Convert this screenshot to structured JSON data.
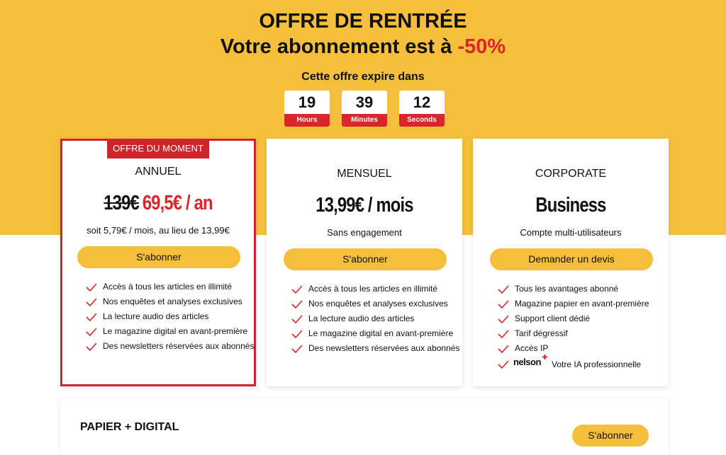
{
  "header": {
    "title": "OFFRE DE RENTRÉE",
    "subtitle": "Votre abonnement est à",
    "discount": "-50%",
    "countdown_label": "Cette offre expire dans",
    "countdown": [
      {
        "value": 19,
        "unit": "Hours"
      },
      {
        "value": 39,
        "unit": "Minutes"
      },
      {
        "value": 12,
        "unit": "Seconds"
      }
    ]
  },
  "plans": [
    {
      "badge": "OFFRE DU MOMENT",
      "name": "ANNUEL",
      "old_price": "139€",
      "price": "69,5€ / an",
      "note": "soit 5,79€ / mois, au lieu de 13,99€",
      "button": "S'abonner",
      "features": [
        "Accès à tous les articles en illimité",
        "Nos enquêtes et analyses exclusives",
        "La lecture audio des articles",
        "Le magazine digital en avant-première",
        "Des newsletters réservées aux abonnés"
      ]
    },
    {
      "name": "MENSUEL",
      "price": "13,99€ / mois",
      "note": "Sans engagement",
      "button": "S'abonner",
      "features": [
        "Accès à tous les articles en illimité",
        "Nos enquêtes et analyses exclusives",
        "La lecture audio des articles",
        "Le magazine digital en avant-première",
        "Des newsletters réservées aux abonnés"
      ]
    },
    {
      "name": "CORPORATE",
      "price": "Business",
      "note": "Compte multi-utilisateurs",
      "button": "Demander un devis",
      "features": [
        "Tous les avantages abonné",
        "Magazine papier en avant-première",
        "Support client dédié",
        "Tarif dégressif",
        "Accès IP"
      ],
      "extra": {
        "logo": "nelson",
        "text": "Votre IA professionnelle"
      }
    }
  ],
  "bottom": {
    "title": "PAPIER + DIGITAL",
    "button": "S'abonner"
  }
}
